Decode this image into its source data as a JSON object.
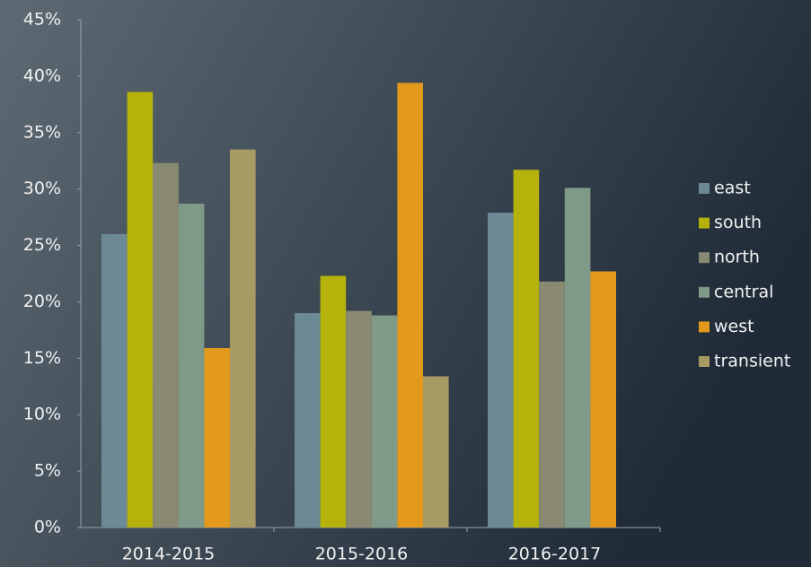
{
  "chart_data": {
    "type": "bar",
    "categories": [
      "2014-2015",
      "2015-2016",
      "2016-2017"
    ],
    "series": [
      {
        "name": "east",
        "color": "#6b8a96",
        "values": [
          26.0,
          19.0,
          27.9
        ]
      },
      {
        "name": "south",
        "color": "#b5b20c",
        "values": [
          38.6,
          22.3,
          31.7
        ]
      },
      {
        "name": "north",
        "color": "#8a8a72",
        "values": [
          32.3,
          19.2,
          21.8
        ]
      },
      {
        "name": "central",
        "color": "#7f9a88",
        "values": [
          28.7,
          18.8,
          30.1
        ]
      },
      {
        "name": "west",
        "color": "#e39a1c",
        "values": [
          15.9,
          39.4,
          22.7
        ]
      },
      {
        "name": "transient",
        "color": "#a89a63",
        "values": [
          33.5,
          13.4,
          null
        ]
      }
    ],
    "ylim": [
      0,
      45
    ],
    "yticks": [
      {
        "value": 0,
        "label": "0%"
      },
      {
        "value": 5,
        "label": "5%"
      },
      {
        "value": 10,
        "label": "10%"
      },
      {
        "value": 15,
        "label": "15%"
      },
      {
        "value": 20,
        "label": "20%"
      },
      {
        "value": 25,
        "label": "25%"
      },
      {
        "value": 30,
        "label": "30%"
      },
      {
        "value": 35,
        "label": "35%"
      },
      {
        "value": 40,
        "label": "40%"
      },
      {
        "value": 45,
        "label": "45%"
      }
    ],
    "grid": false,
    "legend": "right"
  }
}
